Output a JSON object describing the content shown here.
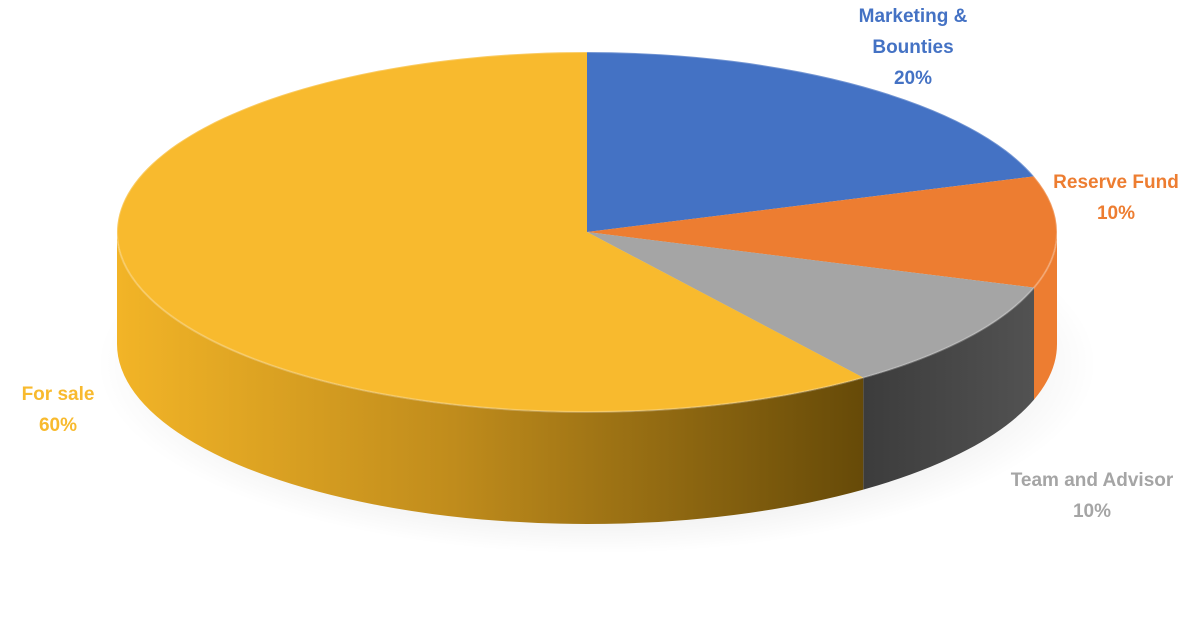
{
  "chart_data": {
    "type": "pie",
    "title": "",
    "slices": [
      {
        "name": "Marketing & Bounties",
        "name_lines": [
          "Marketing &",
          "Bounties"
        ],
        "percent_label": "20%",
        "value": 20,
        "color": "#4472c4"
      },
      {
        "name": "Reserve Fund",
        "name_lines": [
          "Reserve Fund"
        ],
        "percent_label": "10%",
        "value": 10,
        "color": "#ed7d31"
      },
      {
        "name": "Team and Advisor",
        "name_lines": [
          "Team and Advisor"
        ],
        "percent_label": "10%",
        "value": 10,
        "color": "#a5a5a5"
      },
      {
        "name": "For sale",
        "name_lines": [
          "For sale"
        ],
        "percent_label": "60%",
        "value": 60,
        "color": "#f8ba2e"
      }
    ],
    "label_colors": {
      "Marketing & Bounties": "#4472c4",
      "Reserve Fund": "#ed7d31",
      "Team and Advisor": "#a5a5a5",
      "For sale": "#f8ba2e"
    },
    "side_colors": {
      "Team and Advisor": "#454545",
      "For sale": "#c08a10"
    },
    "style": "3d-pie",
    "legend": "none"
  }
}
